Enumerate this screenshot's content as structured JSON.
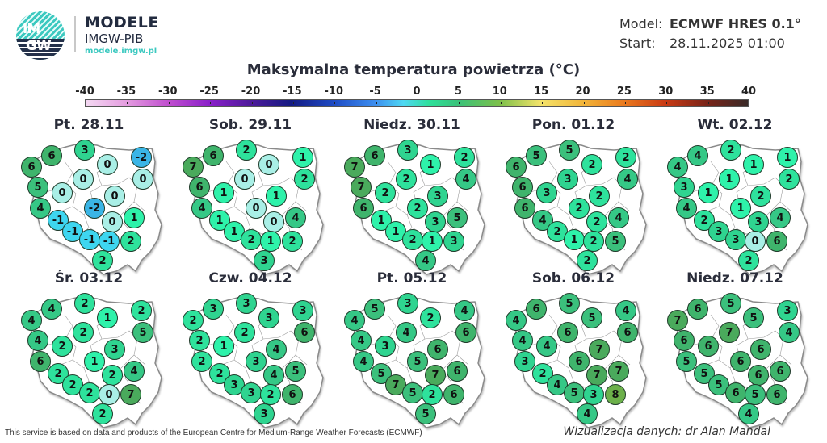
{
  "header": {
    "logo_text_top": "IM",
    "logo_text_bottom": "GW",
    "brand_title": "MODELE",
    "brand_subtitle": "IMGW-PIB",
    "brand_url": "modele.imgw.pl",
    "model_label": "Model:",
    "model_value": "ECMWF HRES 0.1°",
    "start_label": "Start:",
    "start_value": "28.11.2025 01:00"
  },
  "footer": {
    "attribution": "This service is based on data and products of the European Centre for Medium-Range Weather Forecasts (ECMWF)",
    "credit": "Wizualizacja danych: dr Alan Mandal"
  },
  "chart_data": {
    "type": "heatmap",
    "title": "Maksymalna temperatura powietrza (°C)",
    "colorbar": {
      "ticks": [
        -40,
        -35,
        -30,
        -25,
        -20,
        -15,
        -10,
        -5,
        0,
        5,
        10,
        15,
        20,
        25,
        30,
        35,
        40
      ],
      "range": [
        -40,
        40
      ],
      "unit": "°C"
    },
    "value_colors": {
      "-2": "#3ab5e6",
      "-1": "#3ed6f0",
      "0": "#a9efe6",
      "1": "#2ef2aa",
      "2": "#2ee29c",
      "3": "#2fd490",
      "4": "#35c886",
      "5": "#3bc07c",
      "6": "#3fb46c",
      "7": "#4aaa5c",
      "8": "#6cb04a"
    },
    "station_order": [
      "W",
      "NW",
      "N",
      "N2",
      "NE",
      "E",
      "CN",
      "W2",
      "W3",
      "C",
      "C2",
      "W4",
      "SW",
      "SEC",
      "E2",
      "S1",
      "S2",
      "S3",
      "SE",
      "S"
    ],
    "days": [
      {
        "label": "Pt. 28.11",
        "values": [
          6,
          6,
          3,
          0,
          -2,
          0,
          0,
          5,
          0,
          0,
          -2,
          4,
          -1,
          0,
          1,
          -1,
          -1,
          -1,
          2,
          2
        ]
      },
      {
        "label": "Sob. 29.11",
        "values": [
          7,
          6,
          2,
          0,
          1,
          2,
          0,
          6,
          1,
          1,
          0,
          4,
          1,
          0,
          4,
          1,
          2,
          1,
          2,
          3
        ]
      },
      {
        "label": "Niedz. 30.11",
        "values": [
          7,
          6,
          3,
          1,
          2,
          4,
          2,
          7,
          2,
          3,
          2,
          6,
          1,
          3,
          5,
          1,
          2,
          1,
          3,
          4
        ]
      },
      {
        "label": "Pon. 01.12",
        "values": [
          6,
          5,
          5,
          2,
          2,
          4,
          3,
          6,
          3,
          2,
          2,
          6,
          4,
          2,
          4,
          2,
          1,
          2,
          5,
          2
        ]
      },
      {
        "label": "Wt. 02.12",
        "values": [
          4,
          4,
          2,
          1,
          1,
          2,
          1,
          3,
          1,
          2,
          1,
          4,
          2,
          3,
          4,
          3,
          3,
          0,
          6,
          2
        ]
      },
      {
        "label": "Śr. 03.12",
        "values": [
          4,
          4,
          2,
          1,
          2,
          5,
          2,
          4,
          2,
          3,
          1,
          6,
          2,
          2,
          4,
          2,
          2,
          0,
          7,
          2
        ]
      },
      {
        "label": "Czw. 04.12",
        "values": [
          2,
          3,
          3,
          3,
          3,
          6,
          2,
          2,
          1,
          4,
          3,
          2,
          2,
          4,
          5,
          3,
          3,
          2,
          6,
          3
        ]
      },
      {
        "label": "Pt. 05.12",
        "values": [
          4,
          5,
          3,
          2,
          4,
          6,
          4,
          4,
          3,
          6,
          5,
          4,
          5,
          7,
          6,
          7,
          5,
          2,
          6,
          5
        ]
      },
      {
        "label": "Sob. 06.12",
        "values": [
          4,
          6,
          5,
          5,
          4,
          6,
          6,
          4,
          4,
          7,
          6,
          3,
          2,
          7,
          7,
          4,
          5,
          3,
          8,
          4
        ]
      },
      {
        "label": "Niedz. 07.12",
        "values": [
          7,
          6,
          5,
          5,
          3,
          4,
          7,
          6,
          6,
          6,
          6,
          5,
          5,
          6,
          6,
          5,
          6,
          5,
          6,
          4
        ]
      }
    ]
  }
}
